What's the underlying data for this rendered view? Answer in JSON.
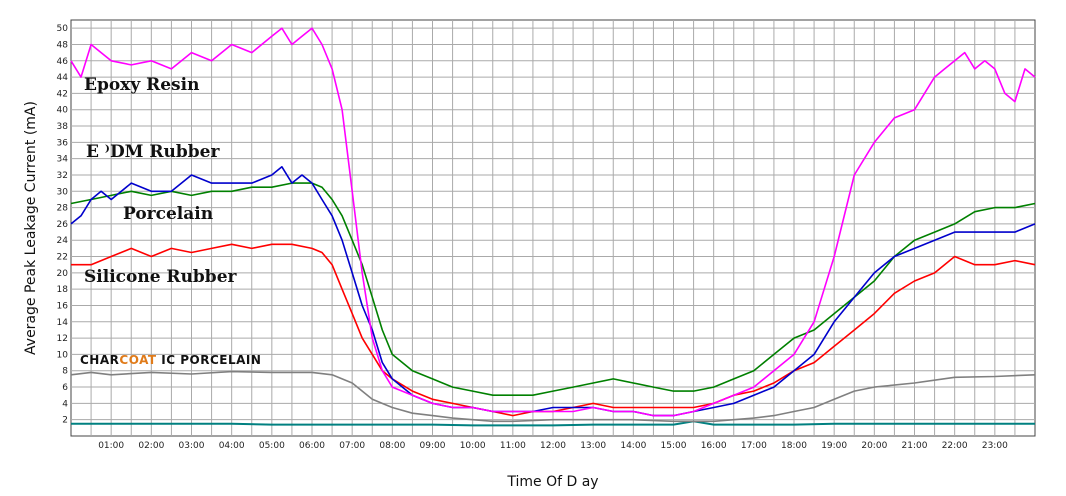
{
  "chart_data": {
    "type": "line",
    "title": "",
    "xlabel": "Time Of D ay",
    "ylabel": "Average Peak Leakage Current (mA)",
    "xlim": [
      0,
      24
    ],
    "ylim": [
      0,
      51
    ],
    "grid": true,
    "x_tick_labels": [
      "01:00",
      "02:00",
      "03:00",
      "04:00",
      "05:00",
      "06:00",
      "07:00",
      "08:00",
      "09:00",
      "10:00",
      "11:00",
      "12:00",
      "13:00",
      "14:00",
      "15:00",
      "16:00",
      "17:00",
      "18:00",
      "19:00",
      "20:00",
      "21:00",
      "22:00",
      "23:00"
    ],
    "y_ticks": [
      2,
      4,
      6,
      8,
      10,
      12,
      14,
      16,
      18,
      20,
      22,
      24,
      26,
      28,
      30,
      32,
      34,
      36,
      38,
      40,
      42,
      44,
      46,
      48,
      50
    ],
    "annotations": [
      {
        "text": "Epoxy Resin",
        "series": "epoxy"
      },
      {
        "text": "E ⁾DM Rubber",
        "series": "epdm"
      },
      {
        "text": "Porcelain",
        "series": "porcelain"
      },
      {
        "text": "Silicone Rubber",
        "series": "silicone"
      },
      {
        "text_parts": [
          "CHAR",
          "COAT",
          " IC PORCELAIN"
        ],
        "part_colors": [
          "#111111",
          "#e07b1a",
          "#111111"
        ],
        "series": "charcoat"
      }
    ],
    "series": [
      {
        "id": "epoxy",
        "color": "#ff00ff",
        "x": [
          0,
          0.25,
          0.5,
          0.75,
          1,
          1.5,
          2,
          2.5,
          3,
          3.5,
          4,
          4.5,
          5,
          5.25,
          5.5,
          5.75,
          6,
          6.25,
          6.5,
          6.75,
          7,
          7.25,
          7.5,
          7.75,
          8,
          8.5,
          9,
          9.5,
          10,
          10.5,
          11,
          11.5,
          12,
          12.5,
          13,
          13.5,
          14,
          14.5,
          15,
          15.5,
          16,
          16.5,
          17,
          17.5,
          18,
          18.5,
          19,
          19.5,
          20,
          20.5,
          21,
          21.25,
          21.5,
          21.75,
          22,
          22.25,
          22.5,
          22.75,
          23,
          23.25,
          23.5,
          23.75,
          24
        ],
        "y": [
          46,
          44,
          48,
          47,
          46,
          45.5,
          46,
          45,
          47,
          46,
          48,
          47,
          49,
          50,
          48,
          49,
          50,
          48,
          45,
          40,
          30,
          20,
          12,
          8,
          6,
          5,
          4,
          3.5,
          3.5,
          3,
          3,
          3,
          3,
          3,
          3.5,
          3,
          3,
          2.5,
          2.5,
          3,
          4,
          5,
          6,
          8,
          10,
          14,
          22,
          32,
          36,
          39,
          40,
          42,
          44,
          45,
          46,
          47,
          45,
          46,
          45,
          42,
          41,
          45,
          44
        ]
      },
      {
        "id": "epdm",
        "color": "#0000cc",
        "x": [
          0,
          0.25,
          0.5,
          0.75,
          1,
          1.5,
          2,
          2.5,
          3,
          3.5,
          4,
          4.5,
          5,
          5.25,
          5.5,
          5.75,
          6,
          6.25,
          6.5,
          6.75,
          7,
          7.25,
          7.5,
          7.75,
          8,
          8.5,
          9,
          9.5,
          10,
          10.5,
          11,
          11.5,
          12,
          12.5,
          13,
          13.5,
          14,
          14.5,
          15,
          15.5,
          16,
          16.5,
          17,
          17.5,
          18,
          18.5,
          19,
          19.5,
          20,
          20.5,
          21,
          21.5,
          22,
          22.5,
          23,
          23.5,
          24
        ],
        "y": [
          26,
          27,
          29,
          30,
          29,
          31,
          30,
          30,
          32,
          31,
          31,
          31,
          32,
          33,
          31,
          32,
          31,
          29,
          27,
          24,
          20,
          16,
          13,
          9,
          7,
          5,
          4,
          3.5,
          3.5,
          3,
          3,
          3,
          3.5,
          3.5,
          3.5,
          3,
          3,
          2.5,
          2.5,
          3,
          3.5,
          4,
          5,
          6,
          8,
          10,
          14,
          17,
          20,
          22,
          23,
          24,
          25,
          25,
          25,
          25,
          26
        ]
      },
      {
        "id": "porcelain",
        "color": "#008000",
        "x": [
          0,
          0.5,
          1,
          1.5,
          2,
          2.5,
          3,
          3.5,
          4,
          4.5,
          5,
          5.5,
          6,
          6.25,
          6.5,
          6.75,
          7,
          7.25,
          7.5,
          7.75,
          8,
          8.5,
          9,
          9.5,
          10,
          10.5,
          11,
          11.5,
          12,
          12.5,
          13,
          13.5,
          14,
          14.5,
          15,
          15.5,
          16,
          16.5,
          17,
          17.5,
          18,
          18.5,
          19,
          19.5,
          20,
          20.5,
          21,
          21.5,
          22,
          22.5,
          23,
          23.5,
          24
        ],
        "y": [
          28.5,
          29,
          29.5,
          30,
          29.5,
          30,
          29.5,
          30,
          30,
          30.5,
          30.5,
          31,
          31,
          30.5,
          29,
          27,
          24,
          21,
          17,
          13,
          10,
          8,
          7,
          6,
          5.5,
          5,
          5,
          5,
          5.5,
          6,
          6.5,
          7,
          6.5,
          6,
          5.5,
          5.5,
          6,
          7,
          8,
          10,
          12,
          13,
          15,
          17,
          19,
          22,
          24,
          25,
          26,
          27.5,
          28,
          28,
          28.5
        ]
      },
      {
        "id": "silicone",
        "color": "#ff0000",
        "x": [
          0,
          0.5,
          1,
          1.5,
          2,
          2.5,
          3,
          3.5,
          4,
          4.5,
          5,
          5.5,
          6,
          6.25,
          6.5,
          6.75,
          7,
          7.25,
          7.5,
          7.75,
          8,
          8.5,
          9,
          9.5,
          10,
          10.5,
          11,
          11.5,
          12,
          12.5,
          13,
          13.5,
          14,
          14.5,
          15,
          15.5,
          16,
          16.5,
          17,
          17.5,
          18,
          18.5,
          19,
          19.5,
          20,
          20.5,
          21,
          21.5,
          22,
          22.5,
          23,
          23.5,
          24
        ],
        "y": [
          21,
          21,
          22,
          23,
          22,
          23,
          22.5,
          23,
          23.5,
          23,
          23.5,
          23.5,
          23,
          22.5,
          21,
          18,
          15,
          12,
          10,
          8,
          7,
          5.5,
          4.5,
          4,
          3.5,
          3,
          2.5,
          3,
          3,
          3.5,
          4,
          3.5,
          3.5,
          3.5,
          3.5,
          3.5,
          4,
          5,
          5.5,
          6.5,
          8,
          9,
          11,
          13,
          15,
          17.5,
          19,
          20,
          22,
          21,
          21,
          21.5,
          21
        ]
      },
      {
        "id": "charcoat",
        "color": "#808080",
        "x": [
          0,
          0.5,
          1,
          2,
          3,
          4,
          5,
          6,
          6.5,
          7,
          7.5,
          8,
          8.5,
          9,
          9.5,
          10,
          10.5,
          11,
          12,
          13,
          14,
          15,
          16,
          16.5,
          17,
          17.5,
          18,
          18.5,
          19,
          19.5,
          20,
          21,
          22,
          23,
          24
        ],
        "y": [
          7.5,
          7.8,
          7.5,
          7.8,
          7.6,
          7.9,
          7.8,
          7.8,
          7.5,
          6.5,
          4.5,
          3.5,
          2.8,
          2.5,
          2.2,
          2,
          1.8,
          1.8,
          2,
          2,
          2,
          1.8,
          1.8,
          2,
          2.2,
          2.5,
          3,
          3.5,
          4.5,
          5.5,
          6,
          6.5,
          7.2,
          7.3,
          7.5
        ]
      },
      {
        "id": "baseline",
        "color": "#008080",
        "x": [
          0,
          1,
          2,
          3,
          4,
          5,
          6,
          7,
          8,
          9,
          10,
          11,
          12,
          13,
          14,
          15,
          15.5,
          16,
          17,
          18,
          19,
          20,
          21,
          22,
          23,
          24
        ],
        "y": [
          1.5,
          1.5,
          1.5,
          1.5,
          1.5,
          1.4,
          1.4,
          1.4,
          1.4,
          1.4,
          1.3,
          1.3,
          1.3,
          1.4,
          1.4,
          1.4,
          1.8,
          1.4,
          1.4,
          1.4,
          1.5,
          1.5,
          1.5,
          1.5,
          1.5,
          1.5
        ]
      }
    ]
  }
}
